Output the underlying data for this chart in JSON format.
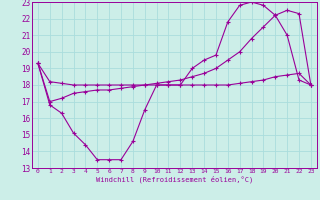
{
  "xlabel": "Windchill (Refroidissement éolien,°C)",
  "bg_color": "#cceee8",
  "line_color": "#990099",
  "grid_color": "#aadddd",
  "xlim": [
    -0.5,
    23.5
  ],
  "ylim": [
    13,
    23
  ],
  "yticks": [
    13,
    14,
    15,
    16,
    17,
    18,
    19,
    20,
    21,
    22,
    23
  ],
  "xticks": [
    0,
    1,
    2,
    3,
    4,
    5,
    6,
    7,
    8,
    9,
    10,
    11,
    12,
    13,
    14,
    15,
    16,
    17,
    18,
    19,
    20,
    21,
    22,
    23
  ],
  "line1_x": [
    0,
    1,
    2,
    3,
    4,
    5,
    6,
    7,
    8,
    9,
    10,
    11,
    12,
    13,
    14,
    15,
    16,
    17,
    18,
    19,
    20,
    21,
    22,
    23
  ],
  "line1_y": [
    19.3,
    18.2,
    18.1,
    18.0,
    18.0,
    18.0,
    18.0,
    18.0,
    18.0,
    18.0,
    18.0,
    18.0,
    18.0,
    18.0,
    18.0,
    18.0,
    18.0,
    18.1,
    18.2,
    18.3,
    18.5,
    18.6,
    18.7,
    18.0
  ],
  "line2_x": [
    0,
    1,
    2,
    3,
    4,
    5,
    6,
    7,
    8,
    9,
    10,
    11,
    12,
    13,
    14,
    15,
    16,
    17,
    18,
    19,
    20,
    21,
    22,
    23
  ],
  "line2_y": [
    19.3,
    16.8,
    16.3,
    15.1,
    14.4,
    13.5,
    13.5,
    13.5,
    14.6,
    16.5,
    18.0,
    18.0,
    18.0,
    19.0,
    19.5,
    19.8,
    21.8,
    22.8,
    23.0,
    22.8,
    22.2,
    21.0,
    18.3,
    18.0
  ],
  "line3_x": [
    0,
    1,
    2,
    3,
    4,
    5,
    6,
    7,
    8,
    9,
    10,
    11,
    12,
    13,
    14,
    15,
    16,
    17,
    18,
    19,
    20,
    21,
    22,
    23
  ],
  "line3_y": [
    19.3,
    17.0,
    17.2,
    17.5,
    17.6,
    17.7,
    17.7,
    17.8,
    17.9,
    18.0,
    18.1,
    18.2,
    18.3,
    18.5,
    18.7,
    19.0,
    19.5,
    20.0,
    20.8,
    21.5,
    22.2,
    22.5,
    22.3,
    18.0
  ]
}
